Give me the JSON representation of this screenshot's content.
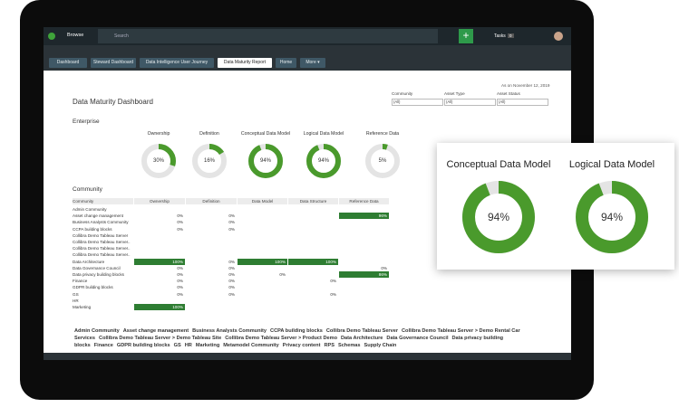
{
  "top_bar": {
    "browse": "Browse",
    "search": "Search",
    "tasks": "Tasks",
    "tasks_count": "0"
  },
  "tabs": [
    "Dashboard",
    "Steward Dashboard",
    "Data Intelligence User Journey",
    "Data Maturity Report",
    "Home",
    "More ▾"
  ],
  "as_of": "As on November 12, 2019",
  "title": "Data Maturity Dashboard",
  "filters": [
    {
      "label": "Community",
      "value": "(All)"
    },
    {
      "label": "Asset Type",
      "value": "(All)"
    },
    {
      "label": "Asset Status",
      "value": "(All)"
    }
  ],
  "enterprise": {
    "heading": "Enterprise",
    "metrics": [
      {
        "name": "Ownership",
        "value": 30,
        "label": "30%"
      },
      {
        "name": "Definition",
        "value": 16,
        "label": "16%"
      },
      {
        "name": "Conceptual Data Model",
        "value": 94,
        "label": "94%"
      },
      {
        "name": "Logical Data Model",
        "value": 94,
        "label": "94%"
      },
      {
        "name": "Reference Data",
        "value": 5,
        "label": "5%"
      }
    ]
  },
  "community": {
    "heading": "Community",
    "columns": [
      "Community",
      "Ownership",
      "Definition",
      "Data Model",
      "Data Structure",
      "Reference Data"
    ],
    "rows": [
      [
        "Admin Community",
        null,
        null,
        null,
        null,
        null
      ],
      [
        "Asset change management",
        "0%",
        "0%",
        null,
        null,
        "96%"
      ],
      [
        "Business Analysts Community",
        "0%",
        "0%",
        null,
        null,
        null
      ],
      [
        "CCPA building blocks",
        "0%",
        "0%",
        null,
        null,
        null
      ],
      [
        "Collibra Demo Tableau Server",
        null,
        null,
        null,
        null,
        null
      ],
      [
        "Collibra Demo Tableau Server..",
        null,
        null,
        null,
        null,
        null
      ],
      [
        "Collibra Demo Tableau Server..",
        null,
        null,
        null,
        null,
        null
      ],
      [
        "Collibra Demo Tableau Server..",
        null,
        null,
        null,
        null,
        null
      ],
      [
        "Data Architecture",
        "100%",
        "0%",
        "100%",
        "100%",
        null
      ],
      [
        "Data Governance Council",
        "0%",
        "0%",
        null,
        null,
        "0%"
      ],
      [
        "Data privacy building blocks",
        "0%",
        "0%",
        "0%",
        null,
        "86%"
      ],
      [
        "Finance",
        "0%",
        "0%",
        null,
        "0%",
        null
      ],
      [
        "GDPR building blocks",
        "0%",
        "0%",
        null,
        null,
        null
      ],
      [
        "GS",
        "0%",
        "0%",
        null,
        "0%",
        null
      ],
      [
        "HR",
        null,
        null,
        null,
        null,
        null
      ],
      [
        "Marketing",
        "100%",
        null,
        null,
        null,
        null
      ]
    ]
  },
  "word_cloud": [
    "Admin Community",
    "Asset change management",
    "Business Analysts Community",
    "CCPA building blocks",
    "Collibra Demo Tableau Server",
    "Collibra Demo Tableau Server > Demo Rental Car Services",
    "Collibra Demo Tableau Server > Demo Tableau Site",
    "Collibra Demo Tableau Server > Product Demo",
    "Data Architecture",
    "Data Governance Council",
    "Data privacy building blocks",
    "Finance",
    "GDPR building blocks",
    "GS",
    "HR",
    "Marketing",
    "Metamodel Community",
    "Privacy content",
    "RPS",
    "Schemas",
    "Supply Chain"
  ],
  "zoom": {
    "metrics": [
      {
        "name": "Conceptual Data Model",
        "value": 94,
        "label": "94%"
      },
      {
        "name": "Logical Data Model",
        "value": 94,
        "label": "94%"
      }
    ]
  }
}
